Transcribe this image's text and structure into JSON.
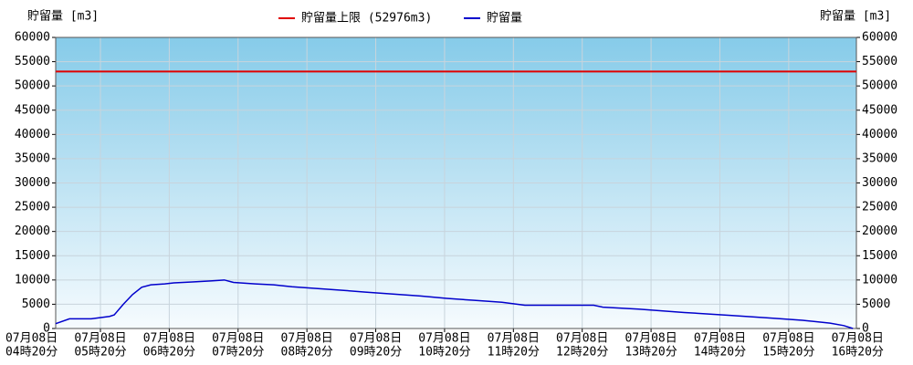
{
  "chart_data": {
    "type": "line",
    "y_label": "貯留量 [m3]",
    "y2_label": "貯留量 [m3]",
    "limit": {
      "name": "貯留量上限 (52976m3)",
      "color": "#e00000",
      "value": 52976
    },
    "x": [
      281,
      293,
      312,
      328,
      332,
      340,
      348,
      356,
      364,
      376,
      384,
      400,
      416,
      428,
      436,
      455,
      471,
      487,
      511,
      535,
      551,
      575,
      599,
      622,
      646,
      670,
      690,
      710,
      750,
      758,
      789,
      829,
      869,
      908,
      932,
      956,
      968,
      976
    ],
    "series": [
      {
        "name": "貯留量",
        "color": "#0000cc",
        "values": [
          1000,
          2000,
          2000,
          2500,
          2800,
          5000,
          7000,
          8500,
          9000,
          9200,
          9400,
          9600,
          9800,
          10000,
          9500,
          9200,
          9000,
          8600,
          8200,
          7800,
          7500,
          7100,
          6700,
          6200,
          5800,
          5400,
          4800,
          4800,
          4800,
          4400,
          4000,
          3300,
          2700,
          2100,
          1700,
          1100,
          600,
          0
        ]
      }
    ],
    "xlim": [
      281,
      979
    ],
    "xticks": [
      {
        "value": 260,
        "label": [
          "07月08日",
          "04時20分"
        ]
      },
      {
        "value": 320,
        "label": [
          "07月08日",
          "05時20分"
        ]
      },
      {
        "value": 380,
        "label": [
          "07月08日",
          "06時20分"
        ]
      },
      {
        "value": 440,
        "label": [
          "07月08日",
          "07時20分"
        ]
      },
      {
        "value": 500,
        "label": [
          "07月08日",
          "08時20分"
        ]
      },
      {
        "value": 560,
        "label": [
          "07月08日",
          "09時20分"
        ]
      },
      {
        "value": 620,
        "label": [
          "07月08日",
          "10時20分"
        ]
      },
      {
        "value": 680,
        "label": [
          "07月08日",
          "11時20分"
        ]
      },
      {
        "value": 740,
        "label": [
          "07月08日",
          "12時20分"
        ]
      },
      {
        "value": 800,
        "label": [
          "07月08日",
          "13時20分"
        ]
      },
      {
        "value": 860,
        "label": [
          "07月08日",
          "14時20分"
        ]
      },
      {
        "value": 920,
        "label": [
          "07月08日",
          "15時20分"
        ]
      },
      {
        "value": 980,
        "label": [
          "07月08日",
          "16時20分"
        ]
      }
    ],
    "ylim": [
      0,
      60000
    ],
    "yticks": [
      0,
      5000,
      10000,
      15000,
      20000,
      25000,
      30000,
      35000,
      40000,
      45000,
      50000,
      55000,
      60000
    ],
    "y2lim": [
      0,
      60000
    ],
    "y2ticks": [
      0,
      5000,
      10000,
      15000,
      20000,
      25000,
      30000,
      35000,
      40000,
      45000,
      50000,
      55000,
      60000
    ],
    "grid": true
  }
}
